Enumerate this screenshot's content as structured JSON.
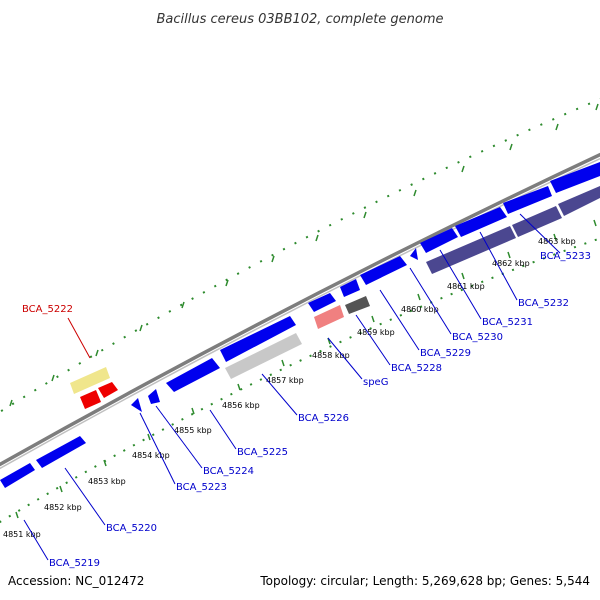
{
  "title": "Bacillus cereus 03BB102, complete genome",
  "accession": "Accession: NC_012472",
  "summary": "Topology: circular; Length: 5,269,628 bp; Genes: 5,544",
  "colors": {
    "backbone": "#8a8a8a",
    "gene_forward": "#0000ee",
    "gene_reverse": "#0000ee",
    "pseudo_yellow": "#f0e68c",
    "red_gene": "#ee0000",
    "pink_gene": "#f08080",
    "gray_gene": "#c8c8c8",
    "dark_gray_gene": "#555555",
    "purple_gene": "#4b4790",
    "tick_green": "#2e8b2e",
    "label_blue": "#0000cc",
    "label_red": "#cc0000"
  },
  "ticks": [
    {
      "label": "4851 kbp"
    },
    {
      "label": "4852 kbp"
    },
    {
      "label": "4853 kbp"
    },
    {
      "label": "4854 kbp"
    },
    {
      "label": "4855 kbp"
    },
    {
      "label": "4856 kbp"
    },
    {
      "label": "4857 kbp"
    },
    {
      "label": "4858 kbp"
    },
    {
      "label": "4859 kbp"
    },
    {
      "label": "4860 kbp"
    },
    {
      "label": "4861 kbp"
    },
    {
      "label": "4862 kbp"
    },
    {
      "label": "4863 kbp"
    }
  ],
  "gene_labels": [
    {
      "name": "BCA_5222",
      "color": "red"
    },
    {
      "name": "BCA_5219",
      "color": "blue"
    },
    {
      "name": "BCA_5220",
      "color": "blue"
    },
    {
      "name": "BCA_5223",
      "color": "blue"
    },
    {
      "name": "BCA_5224",
      "color": "blue"
    },
    {
      "name": "BCA_5225",
      "color": "blue"
    },
    {
      "name": "BCA_5226",
      "color": "blue"
    },
    {
      "name": "speG",
      "color": "blue"
    },
    {
      "name": "BCA_5228",
      "color": "blue"
    },
    {
      "name": "BCA_5229",
      "color": "blue"
    },
    {
      "name": "BCA_5230",
      "color": "blue"
    },
    {
      "name": "BCA_5231",
      "color": "blue"
    },
    {
      "name": "BCA_5232",
      "color": "blue"
    },
    {
      "name": "BCA_5233",
      "color": "blue"
    }
  ]
}
